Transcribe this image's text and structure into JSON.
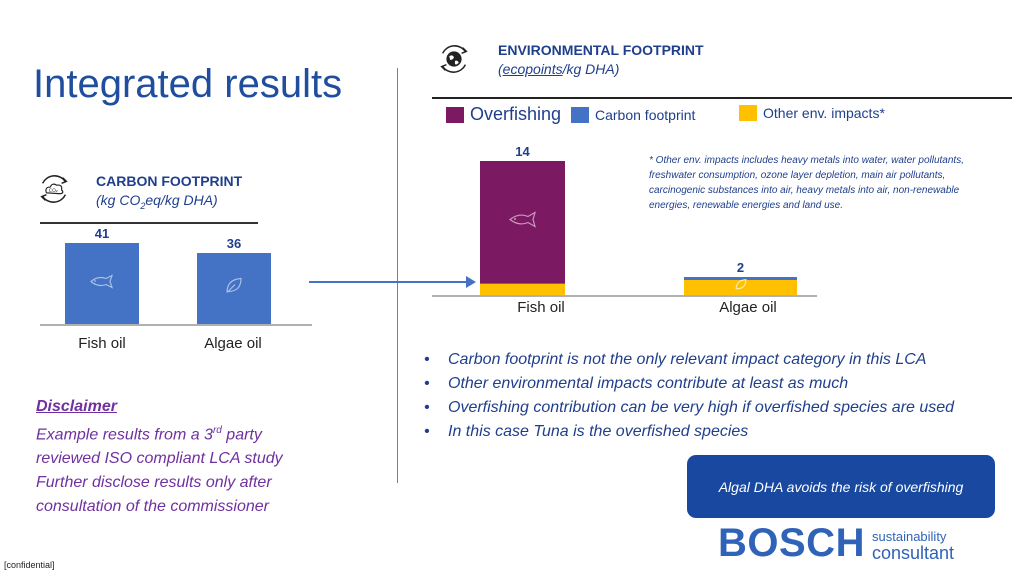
{
  "slide": {
    "title": "Integrated results",
    "footer": "[confidential]"
  },
  "carbon": {
    "heading": "CARBON FOOTPRINT",
    "unit_pre": "(kg CO",
    "unit_sub": "2",
    "unit_post": "eq/kg DHA)",
    "icon": "co2-cloud-cycle-icon",
    "icon_text": "CO₂",
    "chart_data": {
      "type": "bar",
      "categories": [
        "Fish oil",
        "Algae oil"
      ],
      "values": [
        41,
        36
      ],
      "title": "CARBON FOOTPRINT",
      "ylabel": "(kg CO2eq/kg DHA)",
      "ylim": [
        0,
        45
      ],
      "grid": false,
      "colors": [
        "#4472c4"
      ]
    },
    "value_labels": [
      "41",
      "36"
    ],
    "bar_icons": [
      "fish-icon",
      "leaf-icon"
    ]
  },
  "environment": {
    "heading": "ENVIRONMENTAL FOOTPRINT",
    "unit_pre": "(",
    "unit_link": "ecopoints",
    "unit_post": "/kg DHA)",
    "icon": "globe-cycle-icon",
    "legend": [
      {
        "label": "Overfishing",
        "color": "#7b1a63"
      },
      {
        "label": "Carbon footprint",
        "color": "#4472c4"
      },
      {
        "label": "Other env. impacts*",
        "color": "#ffc000"
      }
    ],
    "note": "* Other env. impacts includes heavy metals into water, water pollutants, freshwater consumption, ozone layer depletion, main air pollutants, carcinogenic substances into air, heavy metals into air, non-renewable energies, renewable energies and land use.",
    "chart_data": {
      "type": "bar",
      "stacked": true,
      "categories": [
        "Fish oil",
        "Algae oil"
      ],
      "series": [
        {
          "name": "Other env. impacts*",
          "values": [
            1.2,
            1.6
          ],
          "color": "#ffc000"
        },
        {
          "name": "Carbon footprint",
          "values": [
            0.05,
            0.25
          ],
          "color": "#4472c4"
        },
        {
          "name": "Overfishing",
          "values": [
            12.75,
            0
          ],
          "color": "#7b1a63"
        }
      ],
      "totals": [
        14,
        2
      ],
      "title": "ENVIRONMENTAL FOOTPRINT",
      "ylabel": "(ecopoints/kg DHA)",
      "ylim": [
        0,
        15
      ],
      "legend": "top"
    },
    "total_labels": [
      "14",
      "2"
    ],
    "bar_icons": [
      "fish-icon",
      "leaf-icon"
    ]
  },
  "bullets": [
    "Carbon footprint is not the only relevant impact category in this LCA",
    "Other environmental impacts contribute at least as much",
    "Overfishing contribution can be very high if overfished species are used",
    "In this case Tuna is the overfished species"
  ],
  "disclaimer": {
    "heading": "Disclaimer",
    "line1_pre": "Example results from a 3",
    "line1_sup": "rd",
    "line1_post": " party",
    "line2": "reviewed ISO compliant LCA study",
    "line3": "Further disclose results only after",
    "line4": "consultation of the commissioner"
  },
  "callout": "Algal DHA avoids the risk of overfishing",
  "logo": {
    "word": "BOSCH",
    "sub1": "sustainability",
    "sub2": "consultant"
  }
}
